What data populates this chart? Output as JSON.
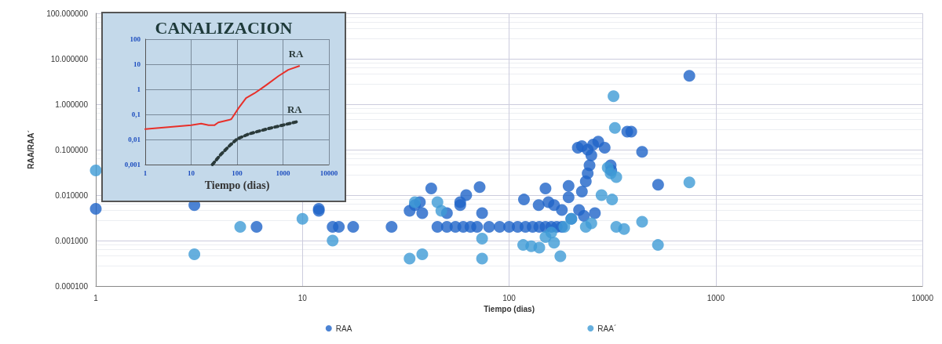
{
  "chart_data": [
    {
      "type": "scatter",
      "xlabel": "Tiempo (dias)",
      "ylabel": "RAA/RAA´",
      "log": "xy",
      "grid": true,
      "legend": "bottom",
      "marker": "circle",
      "xlim": [
        1,
        10000
      ],
      "xticks": [
        1,
        10,
        100,
        1000,
        10000
      ],
      "ylim": [
        0.0001,
        100
      ],
      "yticks": [
        {
          "value": 0.0001,
          "label": "0.000100"
        },
        {
          "value": 0.001,
          "label": "0.001000"
        },
        {
          "value": 0.01,
          "label": "0.010000"
        },
        {
          "value": 0.1,
          "label": "0.100000"
        },
        {
          "value": 1,
          "label": "1.000000"
        },
        {
          "value": 10,
          "label": "10.000000"
        },
        {
          "value": 100,
          "label": "100.000000"
        }
      ],
      "series": [
        {
          "name": "RAA",
          "color": "#1f64c8",
          "x": [
            1,
            3,
            6,
            12,
            12,
            14,
            15,
            17.6,
            27,
            33,
            35,
            37,
            38,
            42,
            45,
            50,
            55,
            60,
            65,
            70,
            80,
            90,
            100,
            110,
            120,
            130,
            140,
            150,
            160,
            170,
            180,
            50,
            58,
            62,
            58,
            72,
            74,
            118,
            139,
            150,
            155,
            165,
            180,
            194,
            194,
            218,
            215,
            225,
            240,
            255,
            270,
            290,
            250,
            245,
            240,
            235,
            225,
            310,
            312,
            373,
            390,
            440,
            526,
            745,
            200,
            230,
            260
          ],
          "values": [
            0.005,
            0.006,
            0.002,
            0.005,
            0.0045,
            0.002,
            0.002,
            0.002,
            0.002,
            0.0045,
            0.006,
            0.007,
            0.004,
            0.014,
            0.002,
            0.002,
            0.002,
            0.002,
            0.002,
            0.002,
            0.002,
            0.002,
            0.002,
            0.002,
            0.002,
            0.002,
            0.002,
            0.002,
            0.002,
            0.002,
            0.002,
            0.004,
            0.007,
            0.01,
            0.006,
            0.015,
            0.004,
            0.008,
            0.006,
            0.014,
            0.007,
            0.006,
            0.0047,
            0.016,
            0.009,
            0.0047,
            0.11,
            0.12,
            0.1,
            0.13,
            0.15,
            0.11,
            0.075,
            0.045,
            0.03,
            0.02,
            0.012,
            0.045,
            0.035,
            0.25,
            0.25,
            0.09,
            0.017,
            4.2,
            0.003,
            0.0035,
            0.004
          ]
        },
        {
          "name": "RAA´",
          "color": "#3f9bd6",
          "x": [
            1,
            3,
            5,
            10,
            14,
            33,
            38,
            35,
            45,
            47,
            74,
            74,
            117,
            128,
            140,
            177,
            172,
            160,
            185,
            200,
            235,
            250,
            320,
            325,
            300,
            310,
            330,
            280,
            300,
            315,
            745,
            440,
            525,
            360,
            330,
            150,
            165
          ],
          "values": [
            0.035,
            0.0005,
            0.002,
            0.003,
            0.001,
            0.0004,
            0.0005,
            0.007,
            0.007,
            0.0045,
            0.0011,
            0.0004,
            0.0008,
            0.00075,
            0.0007,
            0.00045,
            null,
            0.0015,
            0.002,
            0.003,
            0.002,
            0.0024,
            1.5,
            0.3,
            0.04,
            0.03,
            0.025,
            0.01,
            null,
            0.008,
            0.019,
            0.0026,
            0.0008,
            0.0018,
            0.002,
            0.0012,
            0.0009
          ]
        }
      ]
    },
    {
      "type": "line",
      "title": "CANALIZACION",
      "xlabel": "Tiempo (dias)",
      "log": "xy",
      "grid": true,
      "marker": "none",
      "xlim": [
        1,
        10000
      ],
      "xticks": [
        1,
        10,
        100,
        1000,
        10000
      ],
      "ylim": [
        0.001,
        100
      ],
      "yticks": [
        {
          "value": 0.001,
          "label": "0,001"
        },
        {
          "value": 0.01,
          "label": "0,01"
        },
        {
          "value": 0.1,
          "label": "0,1"
        },
        1,
        10,
        100
      ],
      "series": [
        {
          "color": "#e8302a",
          "line_style": "solid",
          "x": [
            1,
            10,
            16.6,
            24,
            32,
            39,
            67,
            75,
            108,
            157,
            240,
            345,
            437,
            800,
            1300,
            2250
          ],
          "values": [
            0.026,
            0.037,
            0.043,
            0.037,
            0.037,
            0.048,
            0.06,
            0.065,
            0.18,
            0.45,
            0.7,
            1.1,
            1.5,
            3.4,
            6,
            8.5
          ]
        },
        {
          "color": "#2a3a3a",
          "line_style": "dotted",
          "x": [
            29,
            44,
            71,
            102,
            188,
            437,
            2100
          ],
          "values": [
            0.001,
            0.0025,
            0.006,
            0.0107,
            0.017,
            0.026,
            0.052
          ]
        }
      ],
      "annotations": [
        "RA",
        "RA"
      ]
    }
  ]
}
